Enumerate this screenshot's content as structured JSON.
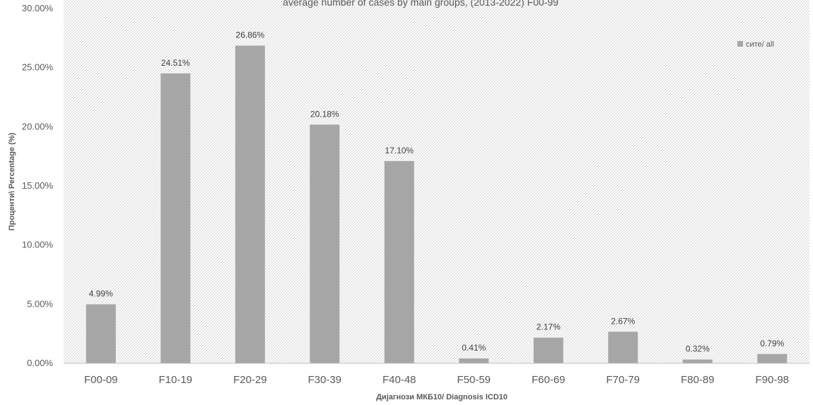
{
  "chart_data": {
    "type": "bar",
    "title": "average number of cases by main groups, (2013-2022) F00-99",
    "xlabel": "Дијагнози МКБ10/ Diagnosis ICD10",
    "ylabel": "Проценти\\ Percentage (%)",
    "categories": [
      "F00-09",
      "F10-19",
      "F20-29",
      "F30-39",
      "F40-48",
      "F50-59",
      "F60-69",
      "F70-79",
      "F80-89",
      "F90-98"
    ],
    "series": [
      {
        "name": "сите/ all",
        "values": [
          4.99,
          24.51,
          26.86,
          20.18,
          17.1,
          0.41,
          2.17,
          2.67,
          0.32,
          0.79
        ],
        "data_labels": [
          "4.99%",
          "24.51%",
          "26.86%",
          "20.18%",
          "17.10%",
          "0.41%",
          "2.17%",
          "2.67%",
          "0.32%",
          "0.79%"
        ]
      }
    ],
    "ylim": [
      0,
      30
    ],
    "yticks": [
      0,
      5,
      10,
      15,
      20,
      25,
      30
    ],
    "ytick_labels": [
      "0.00%",
      "5.00%",
      "10.00%",
      "15.00%",
      "20.00%",
      "25.00%",
      "30.00%"
    ],
    "grid": false,
    "legend_position": "top-right",
    "colors": {
      "bar": "#a6a6a6",
      "hatch": "#d0d0d0",
      "axis": "#bfbfbf"
    }
  }
}
